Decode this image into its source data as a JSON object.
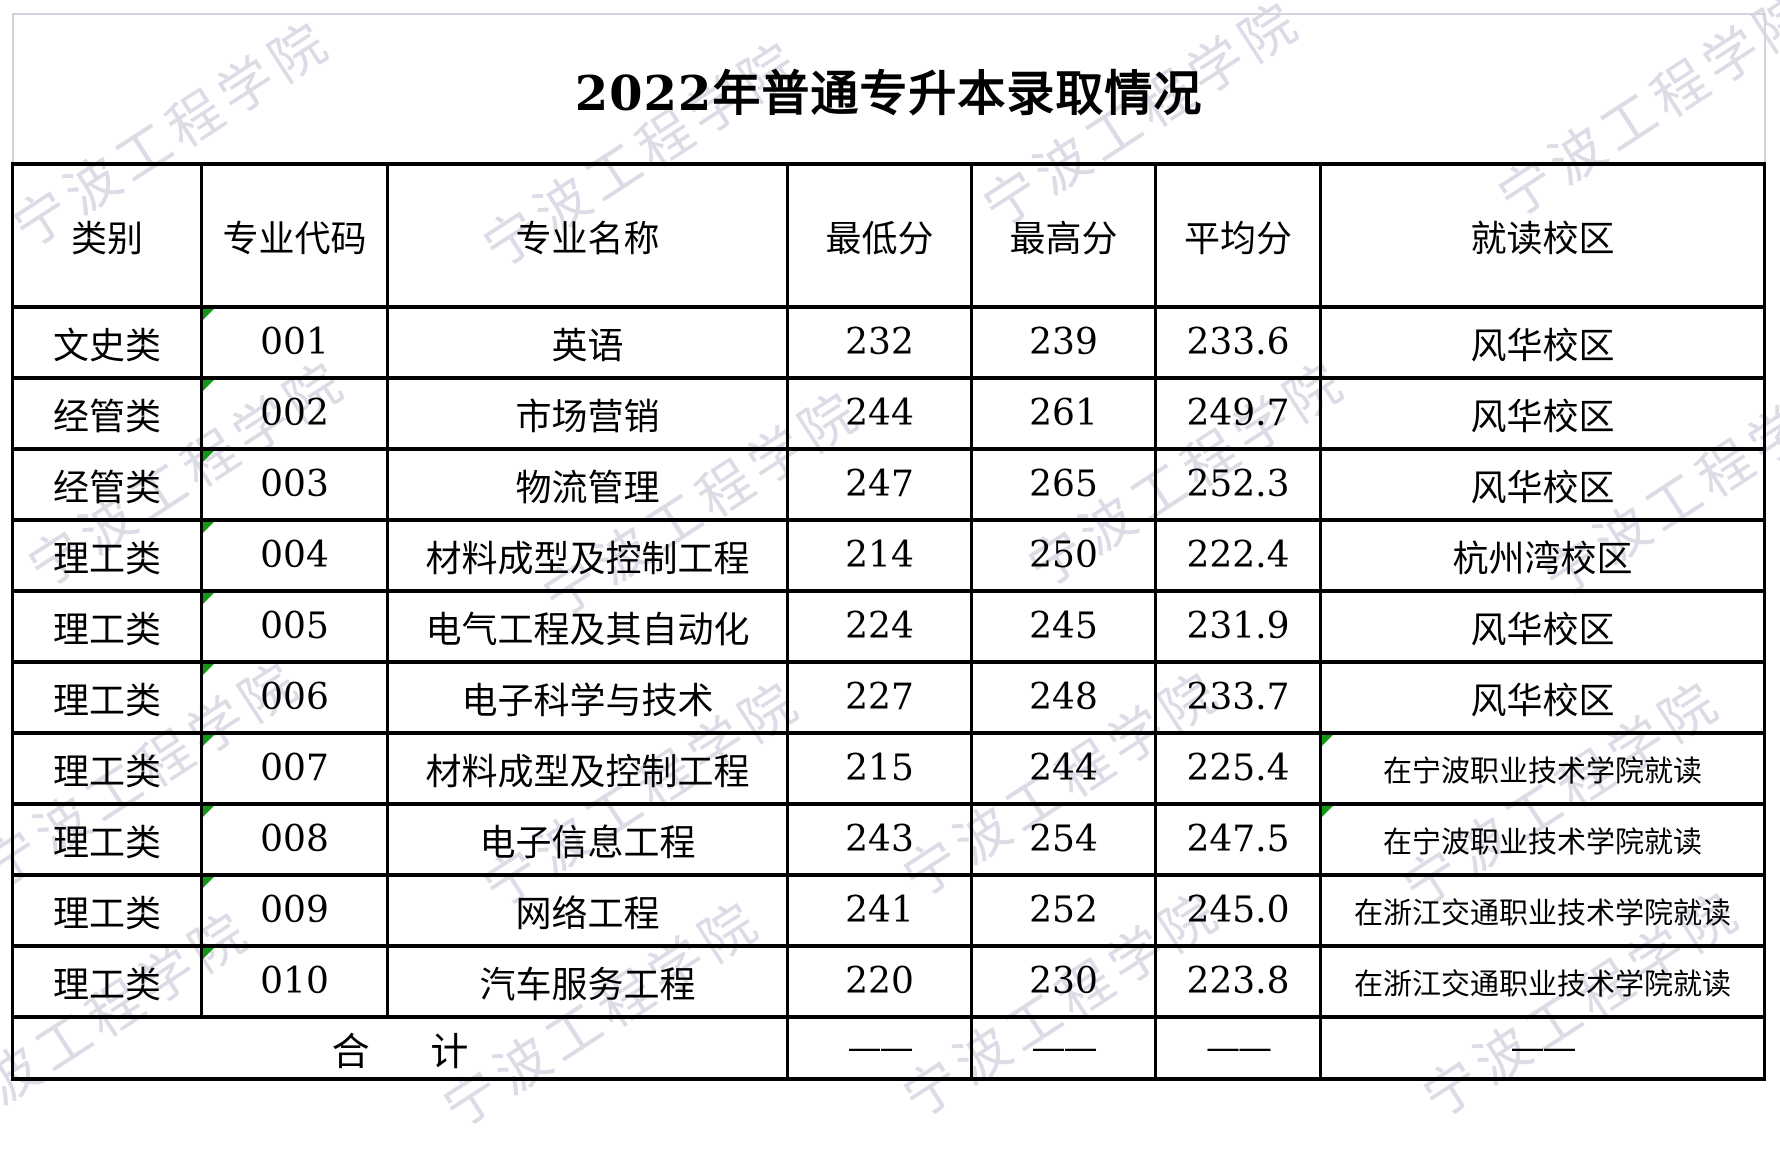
{
  "title": "2022年普通专升本录取情况",
  "watermark": {
    "text": "宁波工程学院",
    "color": "#dcdce6"
  },
  "flag_color": "#169616",
  "table": {
    "headers": [
      "类别",
      "专业代码",
      "专业名称",
      "最低分",
      "最高分",
      "平均分",
      "就读校区"
    ],
    "rows": [
      {
        "category": "文史类",
        "code": "001",
        "name": "英语",
        "min": "232",
        "max": "239",
        "avg": "233.6",
        "campus": "风华校区",
        "code_flag": true,
        "campus_flag": false,
        "campus_long": false
      },
      {
        "category": "经管类",
        "code": "002",
        "name": "市场营销",
        "min": "244",
        "max": "261",
        "avg": "249.7",
        "campus": "风华校区",
        "code_flag": true,
        "campus_flag": false,
        "campus_long": false
      },
      {
        "category": "经管类",
        "code": "003",
        "name": "物流管理",
        "min": "247",
        "max": "265",
        "avg": "252.3",
        "campus": "风华校区",
        "code_flag": true,
        "campus_flag": false,
        "campus_long": false
      },
      {
        "category": "理工类",
        "code": "004",
        "name": "材料成型及控制工程",
        "min": "214",
        "max": "250",
        "avg": "222.4",
        "campus": "杭州湾校区",
        "code_flag": true,
        "campus_flag": false,
        "campus_long": false
      },
      {
        "category": "理工类",
        "code": "005",
        "name": "电气工程及其自动化",
        "min": "224",
        "max": "245",
        "avg": "231.9",
        "campus": "风华校区",
        "code_flag": true,
        "campus_flag": false,
        "campus_long": false
      },
      {
        "category": "理工类",
        "code": "006",
        "name": "电子科学与技术",
        "min": "227",
        "max": "248",
        "avg": "233.7",
        "campus": "风华校区",
        "code_flag": true,
        "campus_flag": false,
        "campus_long": false
      },
      {
        "category": "理工类",
        "code": "007",
        "name": "材料成型及控制工程",
        "min": "215",
        "max": "244",
        "avg": "225.4",
        "campus": "在宁波职业技术学院就读",
        "code_flag": true,
        "campus_flag": true,
        "campus_long": true
      },
      {
        "category": "理工类",
        "code": "008",
        "name": "电子信息工程",
        "min": "243",
        "max": "254",
        "avg": "247.5",
        "campus": "在宁波职业技术学院就读",
        "code_flag": true,
        "campus_flag": true,
        "campus_long": true
      },
      {
        "category": "理工类",
        "code": "009",
        "name": "网络工程",
        "min": "241",
        "max": "252",
        "avg": "245.0",
        "campus": "在浙江交通职业技术学院就读",
        "code_flag": true,
        "campus_flag": false,
        "campus_long": true
      },
      {
        "category": "理工类",
        "code": "010",
        "name": "汽车服务工程",
        "min": "220",
        "max": "230",
        "avg": "223.8",
        "campus": "在浙江交通职业技术学院就读",
        "code_flag": true,
        "campus_flag": false,
        "campus_long": true
      }
    ],
    "total": {
      "label": "合计",
      "dashes": [
        "——",
        "——",
        "——",
        "——"
      ]
    }
  }
}
